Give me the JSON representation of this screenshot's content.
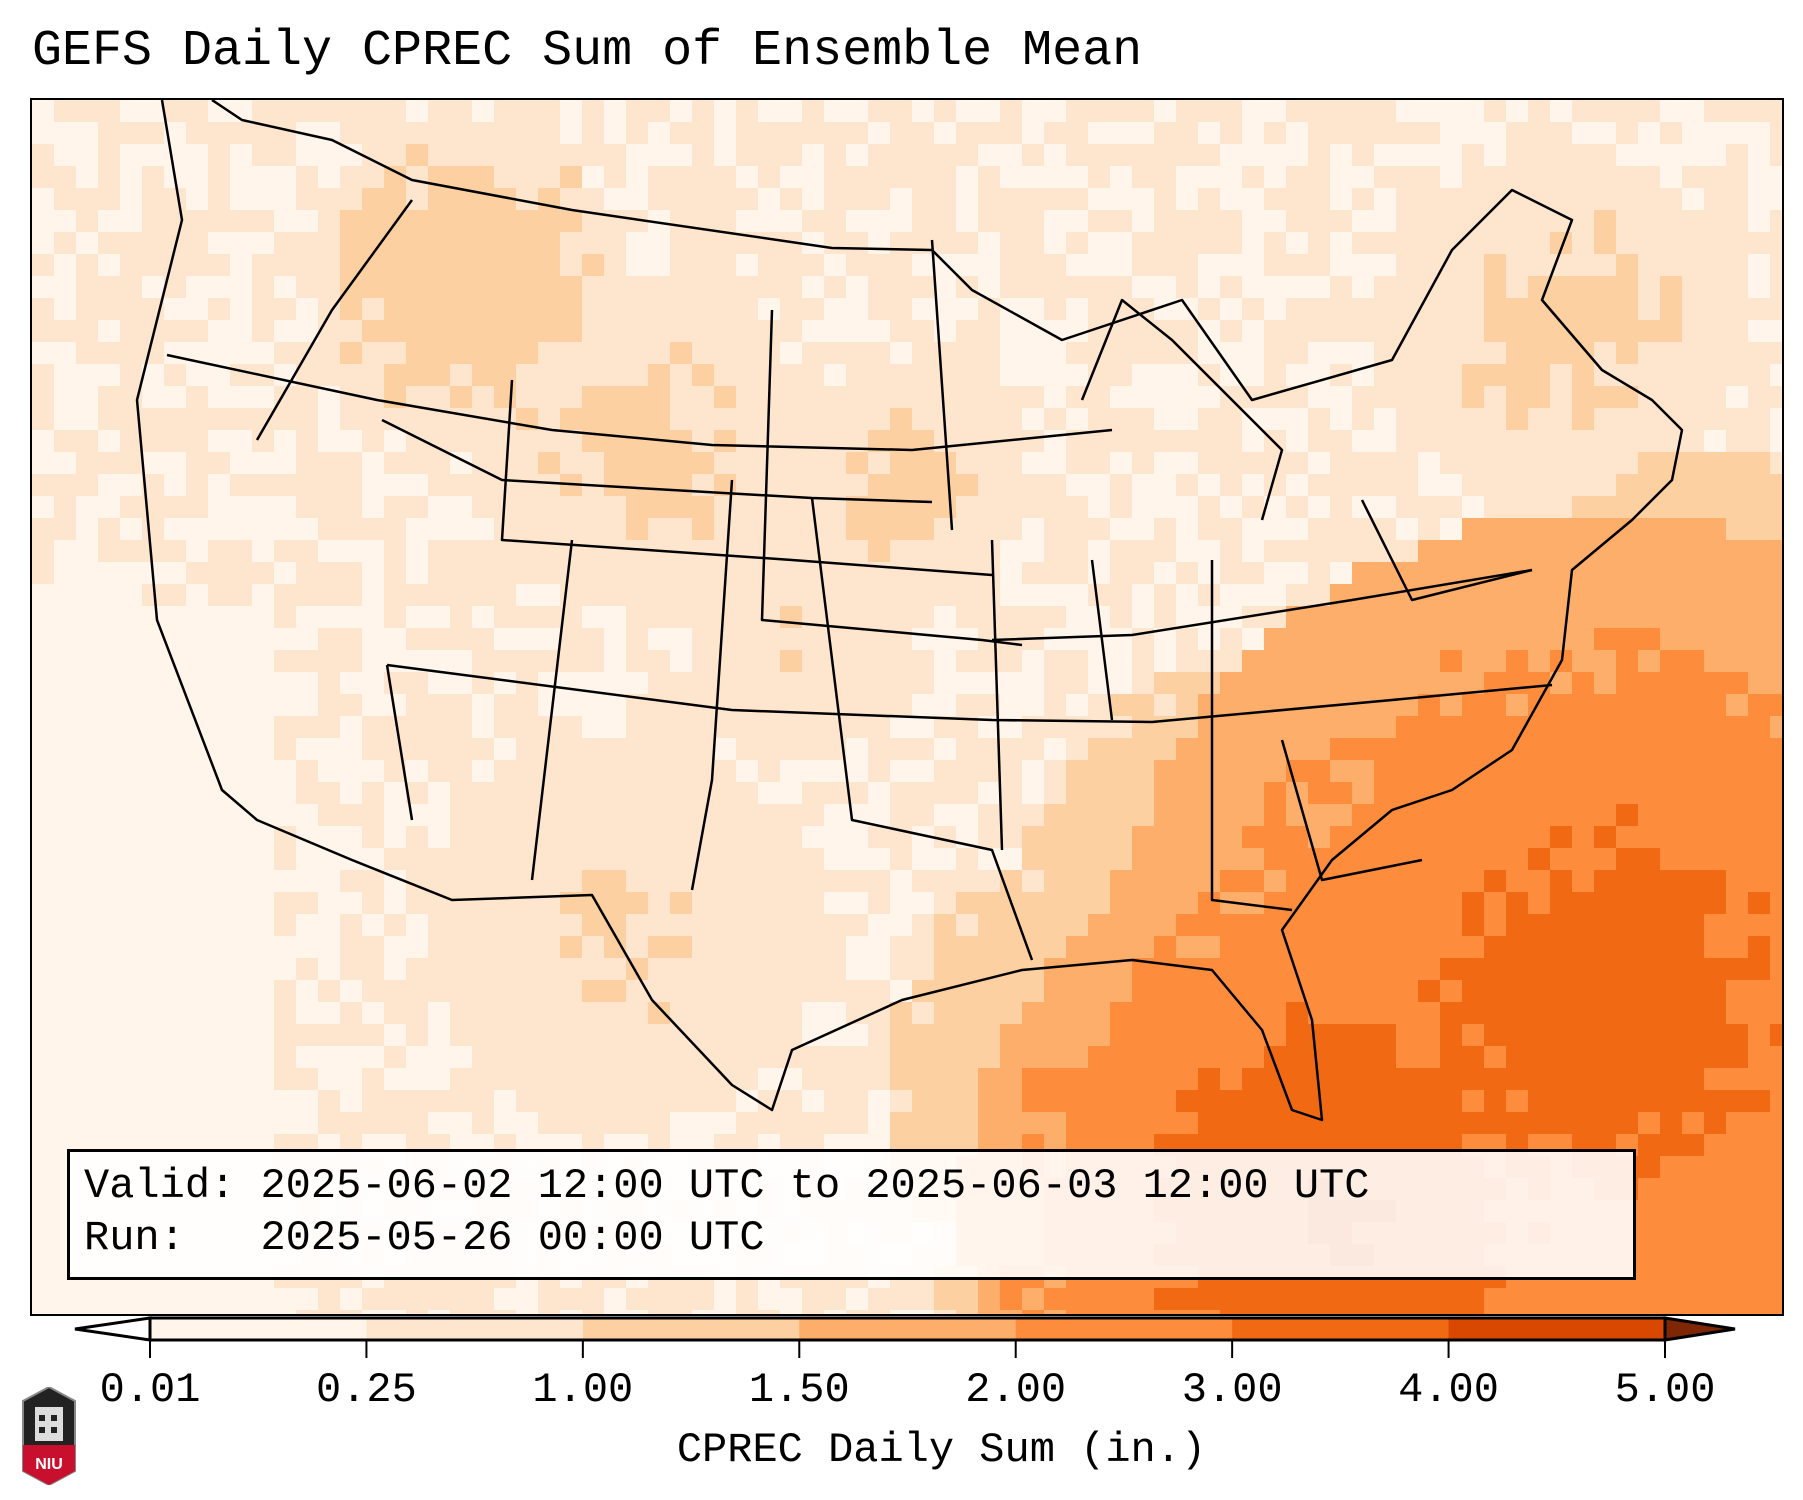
{
  "title": "GEFS Daily CPREC Sum of Ensemble Mean",
  "info": {
    "valid_label": "Valid:",
    "valid_value": "2025-06-02 12:00 UTC to 2025-06-03 12:00 UTC",
    "run_label": "Run:",
    "run_value": "2025-05-26 00:00 UTC"
  },
  "colorbar": {
    "label": "CPREC Daily Sum (in.)",
    "ticks": [
      "0.01",
      "0.25",
      "1.00",
      "1.50",
      "2.00",
      "3.00",
      "4.00",
      "5.00"
    ],
    "colors": [
      "#fff5eb",
      "#fee6ce",
      "#fdd0a2",
      "#fdae6b",
      "#fd8d3c",
      "#f16913",
      "#d94801",
      "#8c2d04"
    ],
    "under_color": "#ffffff",
    "over_color": "#7f2704"
  },
  "logo": {
    "text": "NIU"
  }
}
